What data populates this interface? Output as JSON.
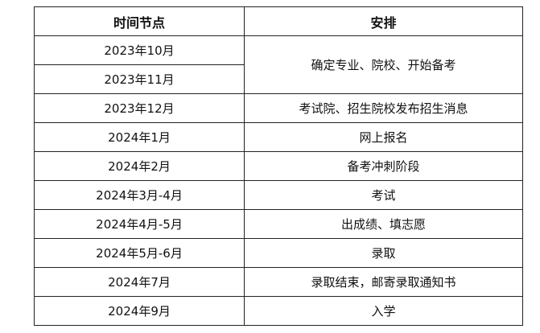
{
  "table": {
    "headers": [
      "时间节点",
      "安排"
    ],
    "rows": [
      {
        "time": "2023年10月",
        "plan": "确定专业、院校、开始备考"
      },
      {
        "time": "2023年11月"
      },
      {
        "time": "2023年12月",
        "plan": "考试院、招生院校发布招生消息"
      },
      {
        "time": "2024年1月",
        "plan": "网上报名"
      },
      {
        "time": "2024年2月",
        "plan": "备考冲刺阶段"
      },
      {
        "time": "2024年3月-4月",
        "plan": "考试"
      },
      {
        "time": "2024年4月-5月",
        "plan": "出成绩、填志愿"
      },
      {
        "time": "2024年5月-6月",
        "plan": "录取"
      },
      {
        "time": "2024年7月",
        "plan": "录取结束，邮寄录取通知书"
      },
      {
        "time": "2024年9月",
        "plan": "入学"
      }
    ]
  }
}
